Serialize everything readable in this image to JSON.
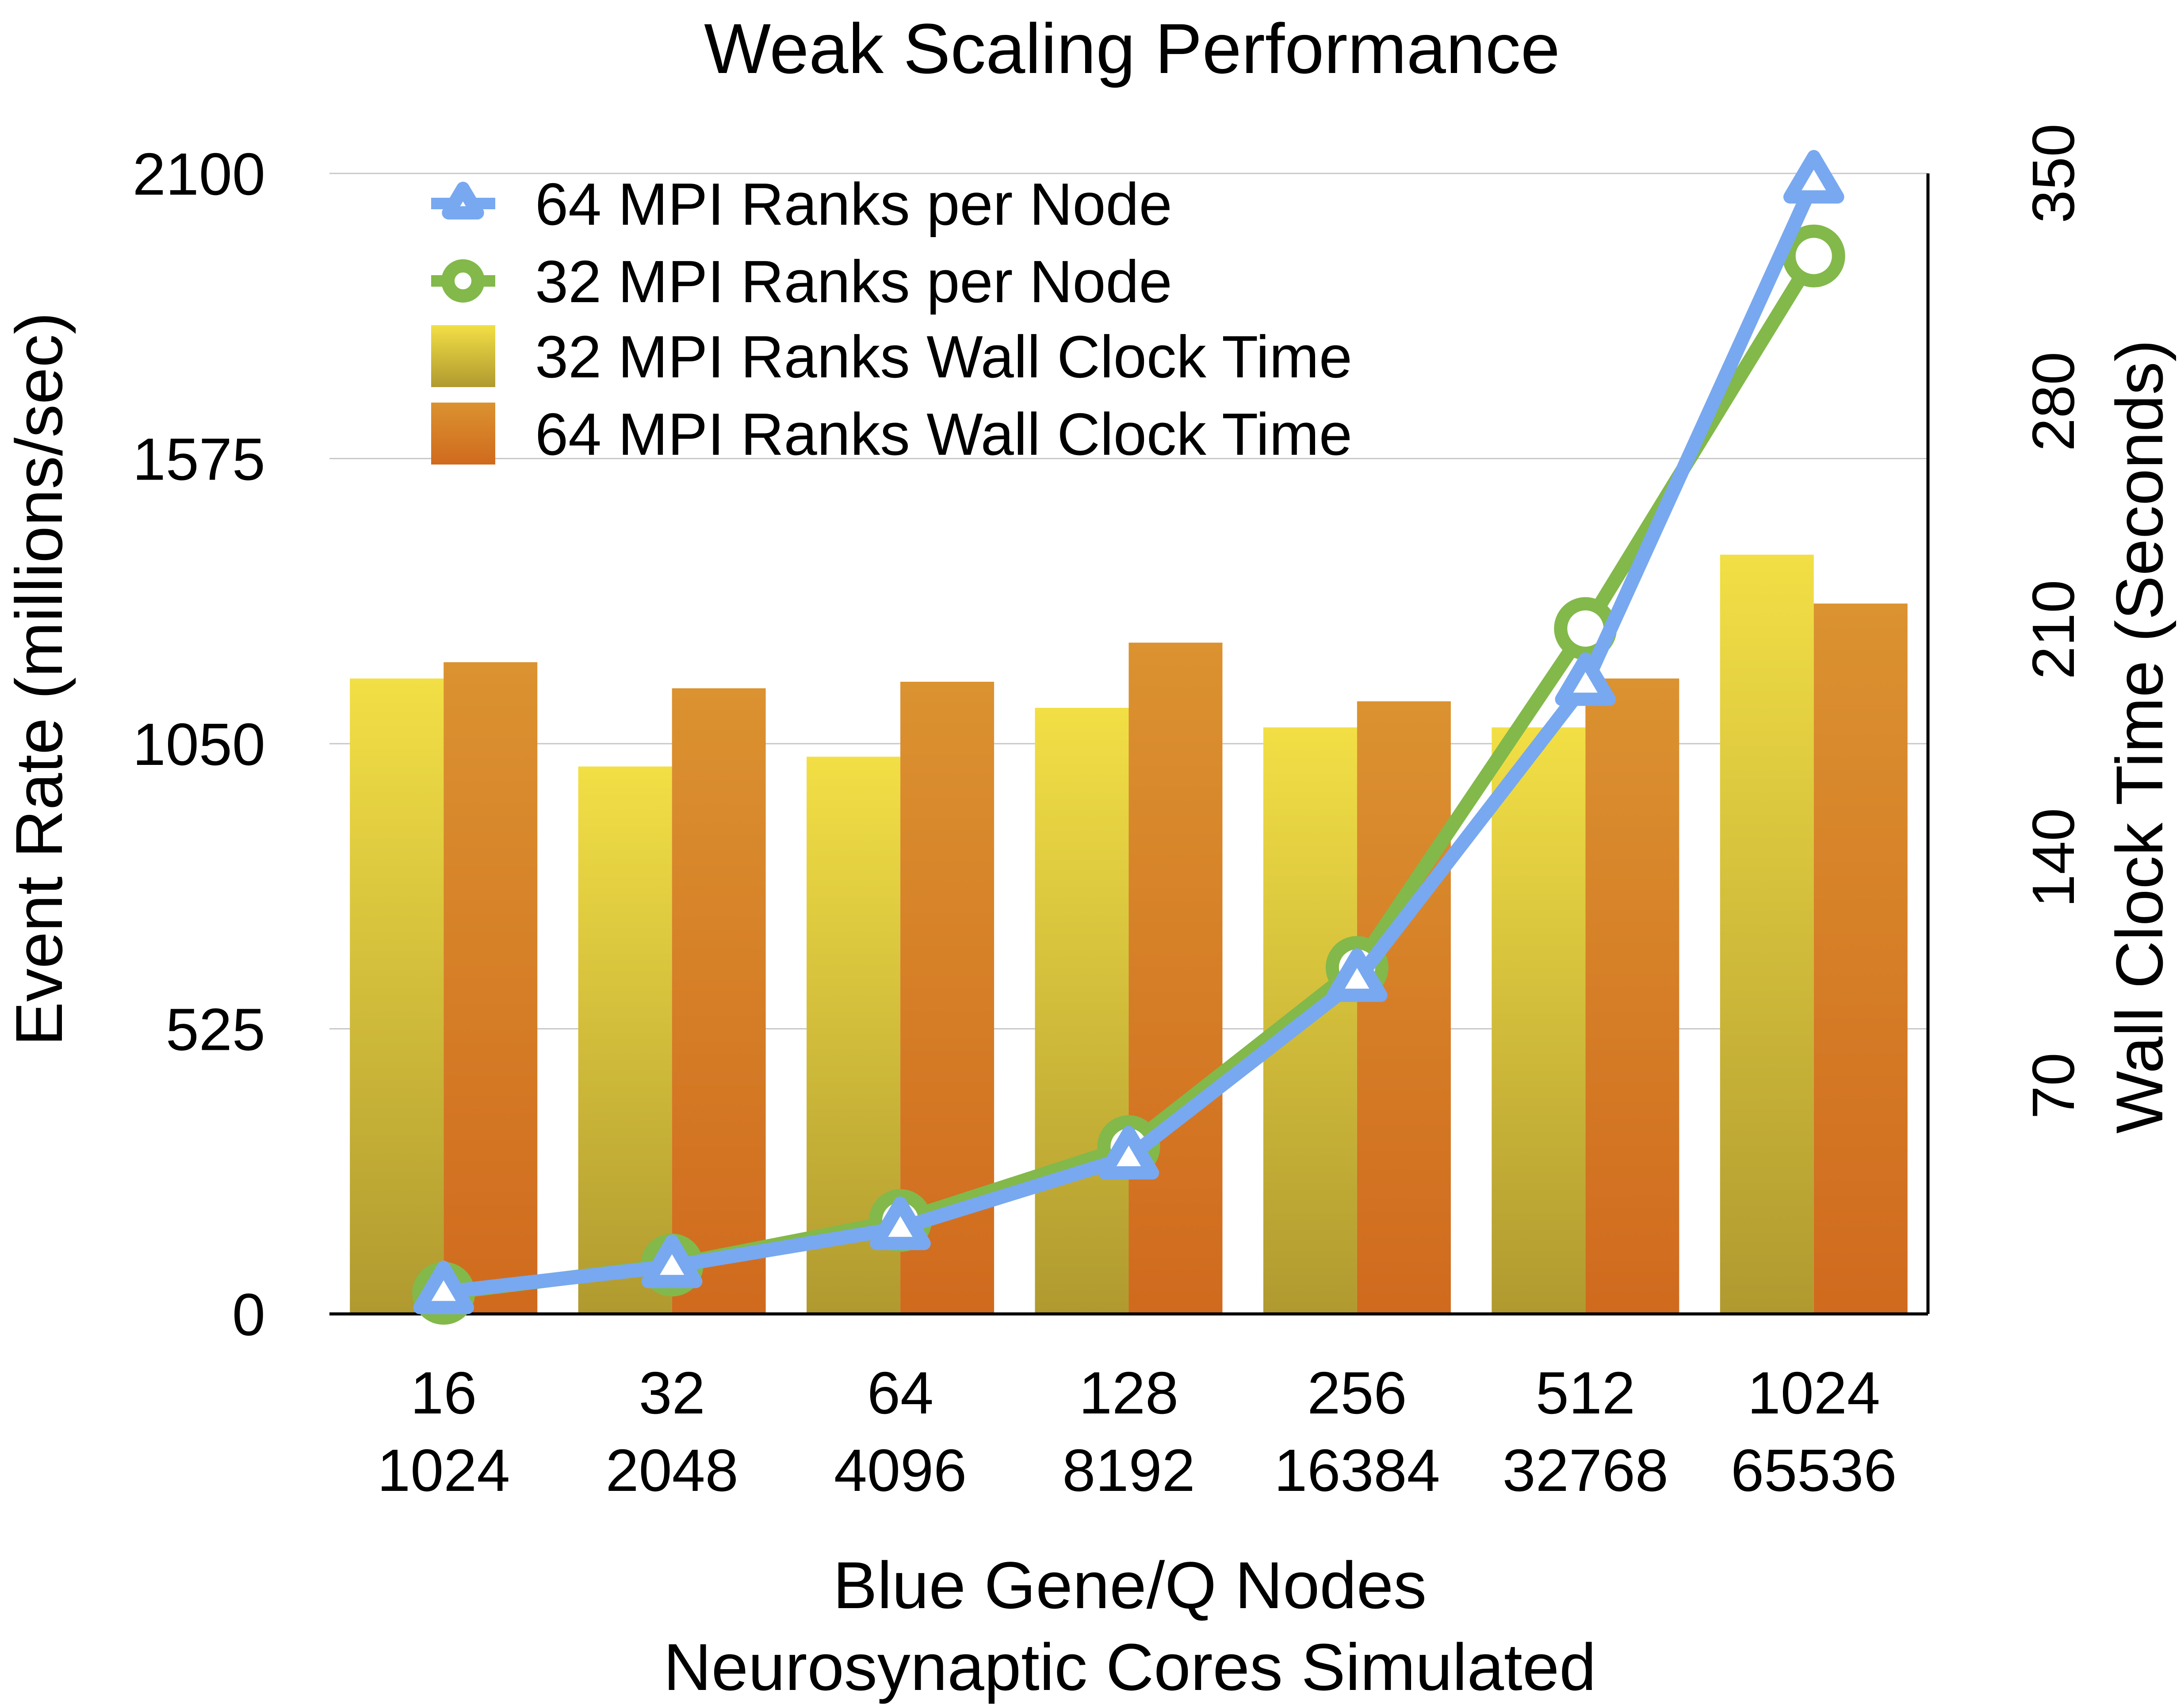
{
  "chart_data": {
    "type": "bar",
    "title": "Weak Scaling Performance",
    "xlabel": [
      "Blue Gene/Q Nodes",
      "Neurosynaptic Cores Simulated"
    ],
    "ylabel_left": "Event Rate (millions/sec)",
    "ylabel_right": "Wall Clock Time (Seconds)",
    "categories": [
      [
        "16",
        "1024"
      ],
      [
        "32",
        "2048"
      ],
      [
        "64",
        "4096"
      ],
      [
        "128",
        "8192"
      ],
      [
        "256",
        "16384"
      ],
      [
        "512",
        "32768"
      ],
      [
        "1024",
        "65536"
      ]
    ],
    "y_left": {
      "min": 0,
      "max": 2100,
      "ticks": [
        "0",
        "525",
        "1050",
        "1575",
        "2100"
      ]
    },
    "y_right": {
      "min": 0,
      "max": 350,
      "ticks": [
        "70",
        "140",
        "210",
        "280",
        "350"
      ]
    },
    "grid": true,
    "legend_position": "top-left",
    "bar_series": [
      {
        "name": "32 MPI Ranks Wall Clock Time",
        "axis": "right",
        "colors": [
          "#f2df45",
          "#b09a30"
        ],
        "values": [
          195,
          168,
          171,
          186,
          180,
          180,
          233
        ]
      },
      {
        "name": "64 MPI Ranks Wall Clock Time",
        "axis": "right",
        "colors": [
          "#db9230",
          "#d06a1e"
        ],
        "values": [
          200,
          192,
          194,
          206,
          188,
          195,
          218
        ]
      }
    ],
    "line_series": [
      {
        "name": "64 MPI Ranks per Node",
        "axis": "left",
        "color": "#78a8f0",
        "marker": "triangle",
        "values": [
          40,
          88,
          158,
          288,
          615,
          1160,
          2085
        ]
      },
      {
        "name": "32 MPI Ranks per Node",
        "axis": "left",
        "color": "#82b94a",
        "marker": "circle",
        "values": [
          38,
          90,
          172,
          308,
          638,
          1262,
          1948
        ]
      }
    ]
  }
}
